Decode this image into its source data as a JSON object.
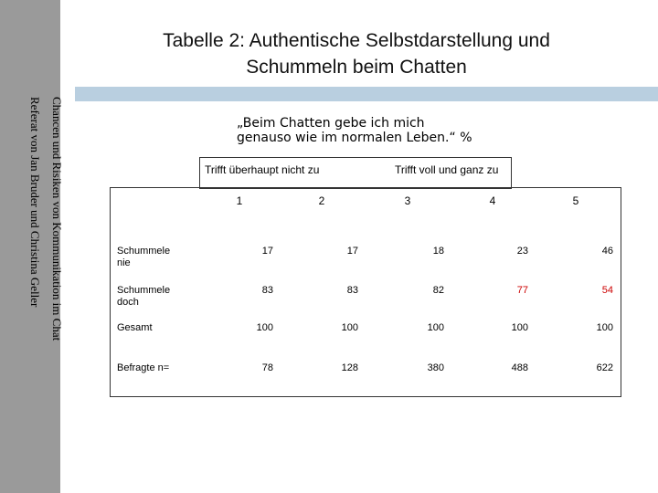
{
  "sidebar": {
    "line1": "Chancen und Risiken von Kommunikation im Chat",
    "line2": "Referat von Jan Bruder und Christina Geller"
  },
  "title": {
    "line1": "Tabelle 2: Authentische Selbstdarstellung und",
    "line2": "Schummeln beim Chatten"
  },
  "quote": {
    "line1": "„Beim Chatten gebe ich mich",
    "line2": "genauso wie im normalen Leben.“  %"
  },
  "scale": {
    "left": "Trifft überhaupt nicht zu",
    "right": "Trifft voll und ganz zu"
  },
  "table": {
    "columns": [
      "1",
      "2",
      "3",
      "4",
      "5"
    ],
    "rows": [
      {
        "label1": "Schummele",
        "label2": "nie",
        "values": [
          "17",
          "17",
          "18",
          "23",
          "46"
        ]
      },
      {
        "label1": "Schummele",
        "label2": "doch",
        "values": [
          "83",
          "83",
          "82",
          "77",
          "54"
        ]
      },
      {
        "label1": "Gesamt",
        "label2": "",
        "values": [
          "100",
          "100",
          "100",
          "100",
          "100"
        ]
      },
      {
        "label1": "Befragte n=",
        "label2": "",
        "values": [
          "78",
          "128",
          "380",
          "488",
          "622"
        ]
      }
    ]
  },
  "colors": {
    "sidebar": "#9a9a9a",
    "accent_band": "#b9cfe0",
    "highlight": "#cc0000"
  }
}
